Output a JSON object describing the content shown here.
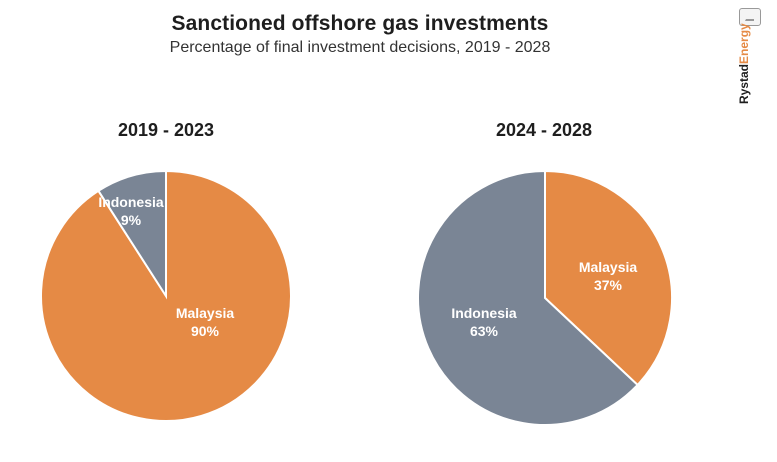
{
  "title": "Sanctioned offshore gas investments",
  "subtitle": "Percentage of final investment decisions, 2019 - 2028",
  "brand": {
    "name_part1": "Rystad",
    "name_part2": "Energy",
    "icon": "image-icon"
  },
  "colors": {
    "malaysia": "#e58a45",
    "indonesia": "#7a8595"
  },
  "chart_data": [
    {
      "type": "pie",
      "title": "2019 - 2023",
      "slices": [
        {
          "label": "Malaysia",
          "value": 90,
          "value_label": "90%",
          "color": "#e58a45"
        },
        {
          "label": "Indonesia",
          "value": 9,
          "value_label": "9%",
          "color": "#7a8595"
        }
      ]
    },
    {
      "type": "pie",
      "title": "2024 - 2028",
      "slices": [
        {
          "label": "Malaysia",
          "value": 37,
          "value_label": "37%",
          "color": "#e58a45"
        },
        {
          "label": "Indonesia",
          "value": 63,
          "value_label": "63%",
          "color": "#7a8595"
        }
      ]
    }
  ]
}
